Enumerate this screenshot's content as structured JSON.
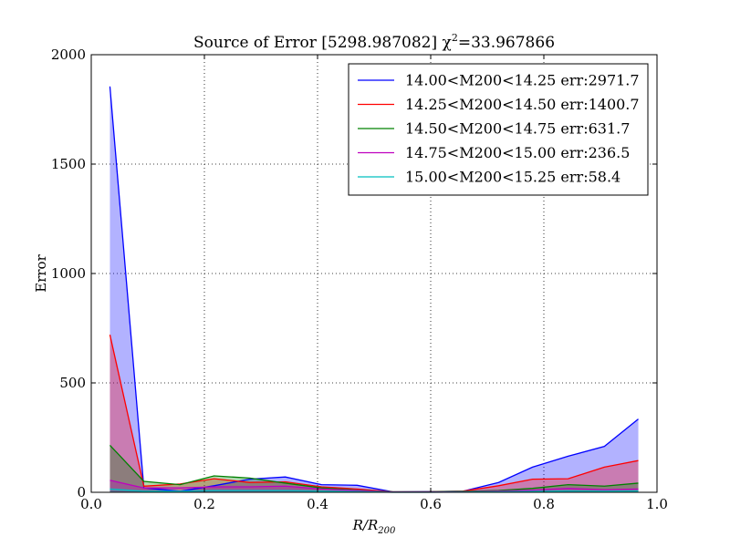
{
  "chart_data": {
    "type": "area",
    "title": "Source of Error [5298.987082] χ²=33.967866",
    "title_parts": {
      "main": "Source of Error [5298.987082] χ",
      "sup": "2",
      "rest": "=33.967866"
    },
    "xlabel": "R/R200",
    "xlabel_parts": {
      "main": "R/R",
      "sub": "200"
    },
    "ylabel": "Error",
    "xlim": [
      0.0,
      1.0
    ],
    "ylim": [
      0,
      2000
    ],
    "xticks": [
      "0.0",
      "0.2",
      "0.4",
      "0.6",
      "0.8",
      "1.0"
    ],
    "yticks": [
      "0",
      "500",
      "1000",
      "1500",
      "2000"
    ],
    "grid": true,
    "legend_position": "upper right",
    "x": [
      0.033,
      0.093,
      0.157,
      0.217,
      0.28,
      0.343,
      0.407,
      0.47,
      0.533,
      0.593,
      0.657,
      0.72,
      0.78,
      0.843,
      0.907,
      0.967
    ],
    "series": [
      {
        "name": "14.00<M200<14.25 err:2971.7",
        "color": "#0000ff",
        "values": [
          1855,
          20,
          5,
          30,
          60,
          70,
          35,
          32,
          2,
          3,
          5,
          45,
          115,
          165,
          210,
          335
        ]
      },
      {
        "name": "14.25<M200<14.50 err:1400.7",
        "color": "#ff0000",
        "values": [
          720,
          28,
          38,
          62,
          45,
          48,
          25,
          15,
          2,
          2,
          5,
          30,
          60,
          62,
          115,
          145
        ]
      },
      {
        "name": "14.50<M200<14.75 err:631.7",
        "color": "#008000",
        "values": [
          215,
          50,
          35,
          75,
          65,
          42,
          20,
          10,
          2,
          2,
          4,
          8,
          18,
          35,
          28,
          42
        ]
      },
      {
        "name": "14.75<M200<15.00 err:236.5",
        "color": "#bf00bf",
        "values": [
          55,
          20,
          20,
          25,
          25,
          28,
          15,
          8,
          1,
          1,
          2,
          5,
          10,
          18,
          12,
          15
        ]
      },
      {
        "name": "15.00<M200<15.25 err:58.4",
        "color": "#00bfbf",
        "values": [
          15,
          5,
          5,
          8,
          8,
          8,
          5,
          3,
          0,
          0,
          1,
          2,
          4,
          6,
          5,
          6
        ]
      }
    ]
  }
}
